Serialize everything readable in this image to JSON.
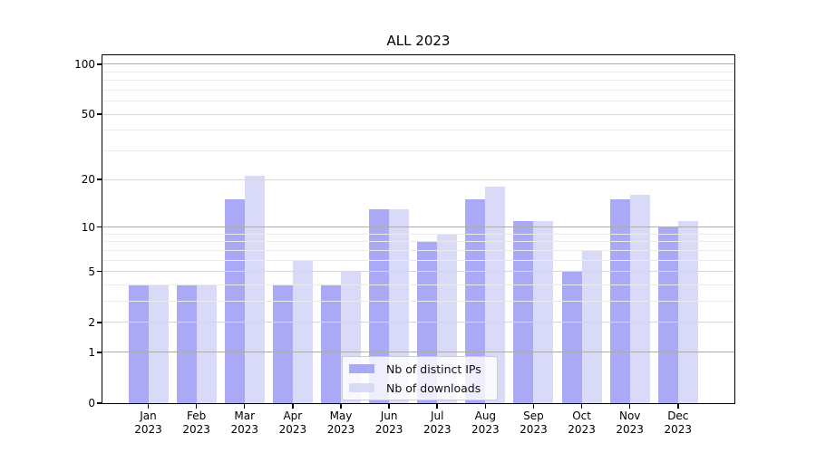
{
  "title": "ALL 2023",
  "chart_data": {
    "type": "bar",
    "title": "ALL 2023",
    "categories": [
      "Jan",
      "Feb",
      "Mar",
      "Apr",
      "May",
      "Jun",
      "Jul",
      "Aug",
      "Sep",
      "Oct",
      "Nov",
      "Dec"
    ],
    "category_year": "2023",
    "series": [
      {
        "name": "Nb of distinct IPs",
        "color": "#a9a9f5",
        "values": [
          4,
          4,
          15,
          4,
          4,
          13,
          8,
          15,
          11,
          5,
          15,
          10
        ]
      },
      {
        "name": "Nb of downloads",
        "color": "#d9d9f8",
        "values": [
          4,
          4,
          21,
          6,
          5,
          13,
          9,
          18,
          11,
          7,
          16,
          11
        ]
      }
    ],
    "yscale": "log1p",
    "ylim": [
      0,
      113
    ],
    "y_major_ticks": [
      0,
      1,
      2,
      5,
      10,
      20,
      50,
      100
    ],
    "y_minor_ticks": [
      3,
      4,
      6,
      7,
      8,
      9,
      30,
      40,
      60,
      70,
      80,
      90
    ],
    "grid": true,
    "legend_position": "lower center",
    "colors": {
      "decade_grid": "#ababab",
      "labeled_grid": "#d6d6d6",
      "minor_grid": "#ebebeb",
      "axis": "#000000",
      "background": "#ffffff"
    }
  }
}
